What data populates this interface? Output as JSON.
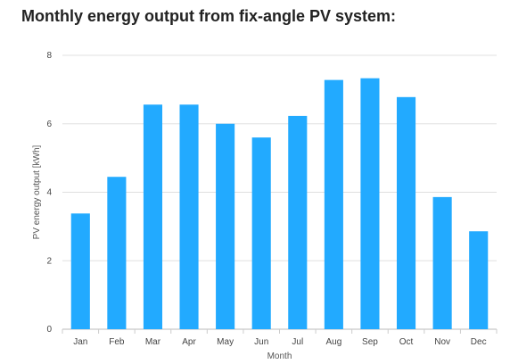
{
  "chart_data": {
    "type": "bar",
    "title": "Monthly energy output from fix-angle PV system:",
    "xlabel": "Month",
    "ylabel": "PV energy output [kWh]",
    "categories": [
      "Jan",
      "Feb",
      "Mar",
      "Apr",
      "May",
      "Jun",
      "Jul",
      "Aug",
      "Sep",
      "Oct",
      "Nov",
      "Dec"
    ],
    "values": [
      3.38,
      4.45,
      6.56,
      6.56,
      6.0,
      5.6,
      6.23,
      7.28,
      7.33,
      6.78,
      3.86,
      2.86
    ],
    "ylim": [
      0,
      8
    ],
    "yticks": [
      0,
      2,
      4,
      6,
      8
    ],
    "grid": true,
    "bar_color": "#22aaff",
    "grid_color": "#e0e0e0"
  }
}
